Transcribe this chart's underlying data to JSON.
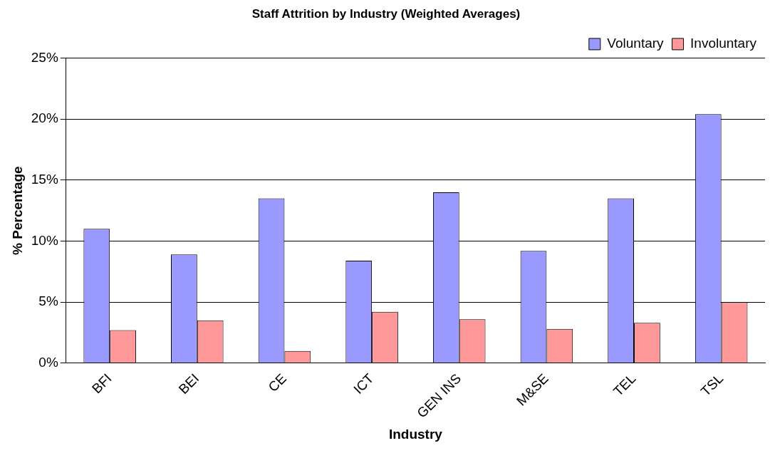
{
  "chart_data": {
    "type": "bar",
    "title": "Staff Attrition by Industry (Weighted Averages)",
    "xlabel": "Industry",
    "ylabel": "% Percentage",
    "categories": [
      "BFI",
      "BEI",
      "CE",
      "ICT",
      "GEN INS",
      "M&SE",
      "TEL",
      "TSL"
    ],
    "series": [
      {
        "name": "Voluntary",
        "color": "#9999ff",
        "values": [
          11.0,
          8.9,
          13.5,
          8.4,
          14.0,
          9.2,
          13.5,
          20.4
        ]
      },
      {
        "name": "Involuntary",
        "color": "#ff9999",
        "values": [
          2.7,
          3.5,
          1.0,
          4.2,
          3.6,
          2.8,
          3.3,
          5.0
        ]
      }
    ],
    "ylim": [
      0,
      25
    ],
    "yticks": [
      {
        "value": 0,
        "label": "0%"
      },
      {
        "value": 5,
        "label": "5%"
      },
      {
        "value": 10,
        "label": "10%"
      },
      {
        "value": 15,
        "label": "15%"
      },
      {
        "value": 20,
        "label": "20%"
      },
      {
        "value": 25,
        "label": "25%"
      }
    ],
    "grid": "y",
    "legend": "top right"
  }
}
